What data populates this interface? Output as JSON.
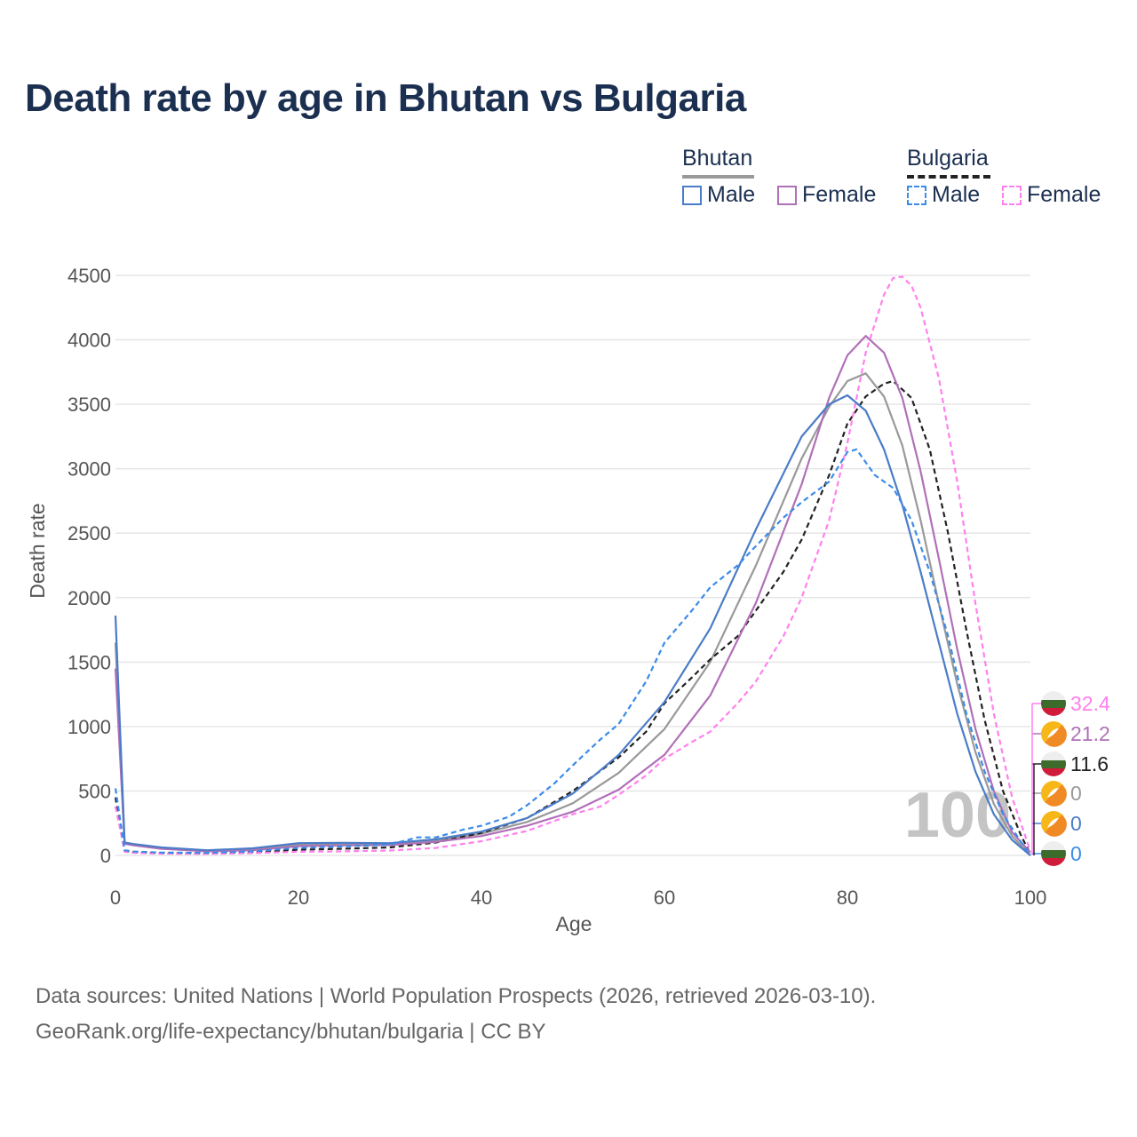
{
  "title": "Death rate by age in Bhutan vs Bulgaria",
  "legend": {
    "bhutan": {
      "name": "Bhutan",
      "male": "Male",
      "female": "Female"
    },
    "bulgaria": {
      "name": "Bulgaria",
      "male": "Male",
      "female": "Female"
    }
  },
  "colors": {
    "bhutan_total": "#999999",
    "bhutan_male": "#4a7cc7",
    "bhutan_female": "#b070b8",
    "bulgaria_total": "#222222",
    "bulgaria_male": "#3b8be8",
    "bulgaria_female": "#ff80ee"
  },
  "footer": {
    "line1": "Data sources: United Nations | World Population Prospects (2026, retrieved 2026-03-10).",
    "line2": "GeoRank.org/life-expectancy/bhutan/bulgaria | CC BY"
  },
  "chart_data": {
    "type": "line",
    "xlabel": "Age",
    "ylabel": "Death rate",
    "xlim": [
      0,
      100
    ],
    "ylim": [
      0,
      4500
    ],
    "xticks": [
      "0",
      "20",
      "40",
      "60",
      "80",
      "100"
    ],
    "yticks": [
      "0",
      "500",
      "1000",
      "1500",
      "2000",
      "2500",
      "3000",
      "3500",
      "4000",
      "4500"
    ],
    "grid": true,
    "watermark_age": "100",
    "series": [
      {
        "id": "bhutan_male",
        "name": "Bhutan Male",
        "country": "bhutan",
        "style": "solid",
        "end_label": "0",
        "points": [
          [
            0,
            1860
          ],
          [
            1,
            100
          ],
          [
            2,
            88
          ],
          [
            5,
            62
          ],
          [
            10,
            40
          ],
          [
            15,
            55
          ],
          [
            20,
            95
          ],
          [
            25,
            98
          ],
          [
            30,
            95
          ],
          [
            35,
            125
          ],
          [
            40,
            185
          ],
          [
            45,
            290
          ],
          [
            50,
            480
          ],
          [
            55,
            780
          ],
          [
            60,
            1190
          ],
          [
            65,
            1760
          ],
          [
            70,
            2530
          ],
          [
            75,
            3250
          ],
          [
            78,
            3500
          ],
          [
            80,
            3570
          ],
          [
            82,
            3450
          ],
          [
            84,
            3150
          ],
          [
            86,
            2720
          ],
          [
            88,
            2200
          ],
          [
            90,
            1650
          ],
          [
            92,
            1100
          ],
          [
            94,
            650
          ],
          [
            96,
            320
          ],
          [
            98,
            120
          ],
          [
            100,
            0
          ]
        ]
      },
      {
        "id": "bhutan_female",
        "name": "Bhutan Female",
        "country": "bhutan",
        "style": "solid",
        "end_label": "21.2",
        "points": [
          [
            0,
            1450
          ],
          [
            1,
            90
          ],
          [
            2,
            78
          ],
          [
            5,
            52
          ],
          [
            10,
            32
          ],
          [
            15,
            40
          ],
          [
            20,
            72
          ],
          [
            25,
            78
          ],
          [
            30,
            80
          ],
          [
            35,
            105
          ],
          [
            40,
            150
          ],
          [
            45,
            230
          ],
          [
            50,
            340
          ],
          [
            55,
            510
          ],
          [
            60,
            780
          ],
          [
            65,
            1240
          ],
          [
            70,
            1960
          ],
          [
            75,
            2880
          ],
          [
            78,
            3550
          ],
          [
            80,
            3880
          ],
          [
            82,
            4030
          ],
          [
            84,
            3900
          ],
          [
            86,
            3550
          ],
          [
            88,
            2980
          ],
          [
            90,
            2300
          ],
          [
            92,
            1600
          ],
          [
            94,
            980
          ],
          [
            96,
            500
          ],
          [
            98,
            180
          ],
          [
            100,
            21.2
          ]
        ]
      },
      {
        "id": "bhutan_total",
        "name": "Bhutan",
        "country": "bhutan",
        "style": "solid",
        "end_label": "0",
        "points": [
          [
            0,
            1650
          ],
          [
            1,
            95
          ],
          [
            2,
            83
          ],
          [
            5,
            57
          ],
          [
            10,
            36
          ],
          [
            15,
            48
          ],
          [
            20,
            84
          ],
          [
            25,
            88
          ],
          [
            30,
            88
          ],
          [
            35,
            115
          ],
          [
            40,
            168
          ],
          [
            45,
            260
          ],
          [
            50,
            405
          ],
          [
            55,
            640
          ],
          [
            60,
            980
          ],
          [
            65,
            1500
          ],
          [
            70,
            2250
          ],
          [
            75,
            3080
          ],
          [
            78,
            3480
          ],
          [
            80,
            3680
          ],
          [
            82,
            3740
          ],
          [
            84,
            3560
          ],
          [
            86,
            3180
          ],
          [
            88,
            2600
          ],
          [
            90,
            1950
          ],
          [
            92,
            1330
          ],
          [
            94,
            800
          ],
          [
            96,
            400
          ],
          [
            98,
            150
          ],
          [
            100,
            0
          ]
        ]
      },
      {
        "id": "bulgaria_male",
        "name": "Bulgaria Male",
        "country": "bulgaria",
        "style": "dashed",
        "end_label": "0",
        "points": [
          [
            0,
            520
          ],
          [
            1,
            40
          ],
          [
            2,
            30
          ],
          [
            5,
            22
          ],
          [
            10,
            20
          ],
          [
            15,
            32
          ],
          [
            20,
            58
          ],
          [
            25,
            70
          ],
          [
            30,
            85
          ],
          [
            33,
            140
          ],
          [
            35,
            140
          ],
          [
            38,
            200
          ],
          [
            40,
            230
          ],
          [
            43,
            300
          ],
          [
            45,
            390
          ],
          [
            48,
            560
          ],
          [
            50,
            700
          ],
          [
            53,
            900
          ],
          [
            55,
            1020
          ],
          [
            58,
            1350
          ],
          [
            60,
            1650
          ],
          [
            63,
            1900
          ],
          [
            65,
            2080
          ],
          [
            68,
            2250
          ],
          [
            70,
            2400
          ],
          [
            73,
            2620
          ],
          [
            75,
            2740
          ],
          [
            78,
            2900
          ],
          [
            80,
            3130
          ],
          [
            81,
            3150
          ],
          [
            83,
            2950
          ],
          [
            85,
            2850
          ],
          [
            87,
            2600
          ],
          [
            89,
            2200
          ],
          [
            91,
            1700
          ],
          [
            93,
            1100
          ],
          [
            95,
            650
          ],
          [
            97,
            320
          ],
          [
            99,
            100
          ],
          [
            100,
            0
          ]
        ]
      },
      {
        "id": "bulgaria_female",
        "name": "Bulgaria Female",
        "country": "bulgaria",
        "style": "dashed",
        "end_label": "32.4",
        "points": [
          [
            0,
            380
          ],
          [
            1,
            28
          ],
          [
            2,
            20
          ],
          [
            5,
            14
          ],
          [
            10,
            12
          ],
          [
            15,
            18
          ],
          [
            20,
            28
          ],
          [
            25,
            32
          ],
          [
            30,
            38
          ],
          [
            35,
            58
          ],
          [
            40,
            110
          ],
          [
            45,
            190
          ],
          [
            50,
            320
          ],
          [
            53,
            380
          ],
          [
            55,
            470
          ],
          [
            58,
            620
          ],
          [
            60,
            750
          ],
          [
            63,
            880
          ],
          [
            65,
            960
          ],
          [
            68,
            1180
          ],
          [
            70,
            1350
          ],
          [
            73,
            1700
          ],
          [
            75,
            2000
          ],
          [
            78,
            2600
          ],
          [
            80,
            3200
          ],
          [
            82,
            3900
          ],
          [
            84,
            4350
          ],
          [
            85,
            4480
          ],
          [
            86,
            4490
          ],
          [
            87,
            4420
          ],
          [
            88,
            4250
          ],
          [
            90,
            3700
          ],
          [
            92,
            2900
          ],
          [
            94,
            1950
          ],
          [
            96,
            1100
          ],
          [
            98,
            450
          ],
          [
            100,
            32.4
          ]
        ]
      },
      {
        "id": "bulgaria_total",
        "name": "Bulgaria",
        "country": "bulgaria",
        "style": "dashed",
        "end_label": "11.6",
        "points": [
          [
            0,
            450
          ],
          [
            1,
            34
          ],
          [
            2,
            25
          ],
          [
            5,
            18
          ],
          [
            10,
            16
          ],
          [
            15,
            25
          ],
          [
            20,
            44
          ],
          [
            25,
            52
          ],
          [
            30,
            62
          ],
          [
            35,
            100
          ],
          [
            40,
            175
          ],
          [
            45,
            290
          ],
          [
            50,
            500
          ],
          [
            55,
            760
          ],
          [
            58,
            960
          ],
          [
            60,
            1180
          ],
          [
            63,
            1380
          ],
          [
            65,
            1520
          ],
          [
            68,
            1700
          ],
          [
            70,
            1900
          ],
          [
            73,
            2200
          ],
          [
            75,
            2450
          ],
          [
            78,
            2950
          ],
          [
            80,
            3350
          ],
          [
            82,
            3560
          ],
          [
            84,
            3660
          ],
          [
            85,
            3680
          ],
          [
            87,
            3550
          ],
          [
            89,
            3150
          ],
          [
            91,
            2500
          ],
          [
            93,
            1750
          ],
          [
            95,
            1050
          ],
          [
            97,
            500
          ],
          [
            99,
            150
          ],
          [
            100,
            11.6
          ]
        ]
      }
    ]
  }
}
